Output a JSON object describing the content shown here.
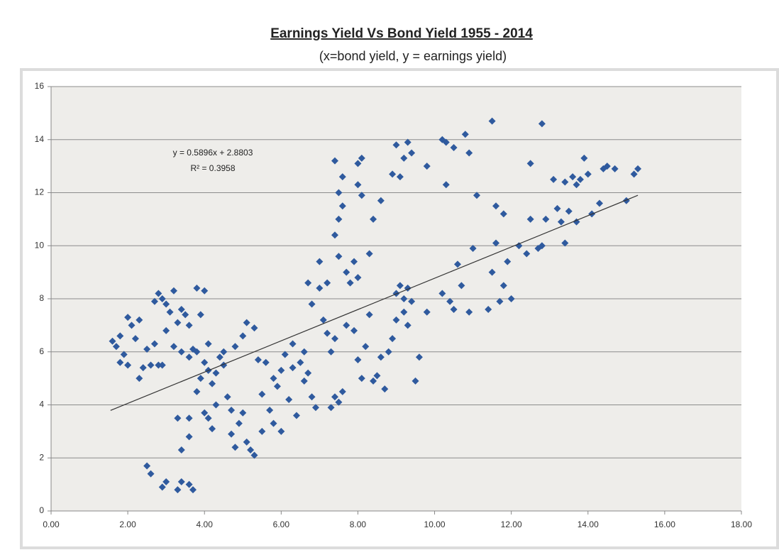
{
  "chart_data": {
    "type": "scatter",
    "title": "Earnings Yield Vs Bond Yield 1955 - 2014",
    "subtitle": "(x=bond yield, y = earnings yield)",
    "annotations": [
      "y = 0.5896x + 2.8803",
      "R² = 0.3958"
    ],
    "xlim": [
      0,
      18
    ],
    "xticks": [
      {
        "value": 0,
        "label": "0.00"
      },
      {
        "value": 2,
        "label": "2.00"
      },
      {
        "value": 4,
        "label": "4.00"
      },
      {
        "value": 6,
        "label": "6.00"
      },
      {
        "value": 8,
        "label": "8.00"
      },
      {
        "value": 10,
        "label": "10.00"
      },
      {
        "value": 12,
        "label": "12.00"
      },
      {
        "value": 14,
        "label": "14.00"
      },
      {
        "value": 16,
        "label": "16.00"
      },
      {
        "value": 18,
        "label": "18.00"
      }
    ],
    "ylim": [
      0,
      16
    ],
    "yticks": [
      0,
      2,
      4,
      6,
      8,
      10,
      12,
      14,
      16
    ],
    "grid": true,
    "series": [
      {
        "color": "#2f5a9e",
        "x": [
          1.6,
          1.7,
          1.8,
          1.9,
          1.8,
          2.0,
          2.1,
          2.0,
          2.2,
          2.3,
          2.3,
          2.4,
          2.5,
          2.6,
          2.7,
          2.8,
          2.9,
          2.7,
          2.8,
          2.9,
          3.0,
          3.1,
          3.2,
          3.3,
          3.4,
          3.5,
          3.6,
          3.8,
          4.0,
          3.9,
          3.0,
          3.2,
          3.4,
          3.6,
          3.7,
          2.5,
          2.6,
          2.9,
          3.0,
          3.3,
          3.4,
          3.6,
          3.7,
          3.4,
          3.6,
          3.3,
          3.6,
          3.8,
          3.9,
          4.0,
          4.1,
          4.2,
          4.0,
          4.1,
          4.2,
          4.3,
          4.4,
          4.5,
          4.6,
          4.7,
          4.8,
          4.7,
          4.9,
          5.0,
          5.1,
          5.2,
          5.3,
          5.0,
          5.1,
          5.3,
          4.8,
          4.5,
          3.8,
          4.1,
          4.3,
          5.4,
          5.5,
          5.6,
          5.7,
          5.8,
          5.9,
          6.0,
          6.1,
          6.2,
          6.3,
          6.4,
          6.5,
          6.6,
          6.7,
          6.8,
          6.9,
          6.3,
          6.0,
          5.5,
          5.8,
          6.6,
          6.8,
          6.7,
          7.0,
          7.1,
          7.2,
          7.3,
          7.4,
          7.5,
          7.6,
          7.3,
          7.4,
          7.5,
          7.4,
          7.5,
          7.6,
          7.5,
          7.4,
          7.6,
          7.7,
          7.8,
          7.9,
          8.0,
          8.1,
          8.0,
          8.0,
          8.1,
          7.9,
          8.0,
          8.1,
          8.2,
          8.3,
          8.4,
          8.5,
          8.3,
          8.4,
          8.6,
          7.0,
          7.2,
          7.7,
          8.6,
          8.7,
          8.9,
          9.0,
          9.1,
          9.2,
          9.4,
          9.3,
          9.0,
          9.1,
          9.2,
          9.3,
          9.4,
          9.2,
          9.3,
          9.0,
          8.9,
          8.8,
          9.5,
          9.6,
          9.8,
          9.8,
          10.2,
          10.3,
          10.5,
          10.8,
          10.9,
          10.3,
          10.2,
          10.4,
          10.5,
          10.7,
          10.6,
          10.9,
          11.0,
          11.1,
          11.4,
          11.5,
          11.6,
          11.5,
          11.6,
          11.8,
          11.7,
          11.8,
          11.9,
          12.0,
          12.2,
          12.4,
          12.5,
          12.5,
          12.7,
          12.8,
          12.9,
          12.8,
          13.1,
          13.2,
          13.3,
          13.4,
          13.4,
          13.5,
          13.6,
          13.7,
          13.8,
          13.9,
          14.0,
          14.1,
          14.3,
          14.4,
          14.5,
          14.7,
          15.0,
          15.2,
          15.3,
          13.7
        ],
        "values": [
          6.4,
          6.2,
          6.6,
          5.9,
          5.6,
          7.3,
          7.0,
          5.5,
          6.5,
          7.2,
          5.0,
          5.4,
          6.1,
          5.5,
          6.3,
          5.5,
          5.5,
          7.9,
          8.2,
          8.0,
          7.8,
          7.5,
          8.3,
          7.1,
          7.6,
          7.4,
          7.0,
          8.4,
          8.3,
          7.4,
          6.8,
          6.2,
          6.0,
          5.8,
          6.1,
          1.7,
          1.4,
          0.9,
          1.1,
          0.8,
          1.1,
          1.0,
          0.8,
          2.3,
          2.8,
          3.5,
          3.5,
          4.5,
          5.0,
          5.6,
          5.3,
          4.8,
          3.7,
          3.5,
          3.1,
          4.0,
          5.8,
          5.5,
          4.3,
          3.8,
          2.4,
          2.9,
          3.3,
          3.7,
          2.6,
          2.3,
          2.1,
          6.6,
          7.1,
          6.9,
          6.2,
          6.0,
          6.0,
          6.3,
          5.2,
          5.7,
          4.4,
          5.6,
          3.8,
          3.3,
          4.7,
          5.3,
          5.9,
          4.2,
          5.4,
          3.6,
          5.6,
          4.9,
          5.2,
          4.3,
          3.9,
          6.3,
          3.0,
          3.0,
          5.0,
          6.0,
          7.8,
          8.6,
          8.4,
          7.2,
          6.7,
          6.0,
          6.5,
          4.1,
          4.5,
          3.9,
          4.3,
          9.6,
          10.4,
          11.0,
          11.5,
          12.0,
          13.2,
          12.6,
          9.0,
          8.6,
          9.4,
          8.8,
          11.9,
          12.3,
          13.1,
          13.3,
          6.8,
          5.7,
          5.0,
          6.2,
          7.4,
          4.9,
          5.1,
          9.7,
          11.0,
          11.7,
          9.4,
          8.6,
          7.0,
          5.8,
          4.6,
          12.7,
          13.8,
          12.6,
          13.3,
          13.5,
          13.9,
          8.2,
          8.5,
          8.0,
          8.4,
          7.9,
          7.5,
          7.0,
          7.2,
          6.5,
          6.0,
          4.9,
          5.8,
          7.5,
          13.0,
          14.0,
          13.9,
          13.7,
          14.2,
          13.5,
          12.3,
          8.2,
          7.9,
          7.6,
          8.5,
          9.3,
          7.5,
          9.9,
          11.9,
          7.6,
          9.0,
          10.1,
          14.7,
          11.5,
          11.2,
          7.9,
          8.5,
          9.4,
          8.0,
          10.0,
          9.7,
          11.0,
          13.1,
          9.9,
          14.6,
          11.0,
          10.0,
          12.5,
          11.4,
          10.9,
          12.4,
          10.1,
          11.3,
          12.6,
          12.3,
          12.5,
          13.3,
          12.7,
          11.2,
          11.6,
          12.9,
          13.0,
          12.9,
          11.7,
          12.7,
          12.9,
          10.9
        ]
      }
    ],
    "trendline": {
      "color": "#333333",
      "x": [
        1.55,
        15.3
      ],
      "values": [
        3.79,
        11.9
      ]
    }
  }
}
